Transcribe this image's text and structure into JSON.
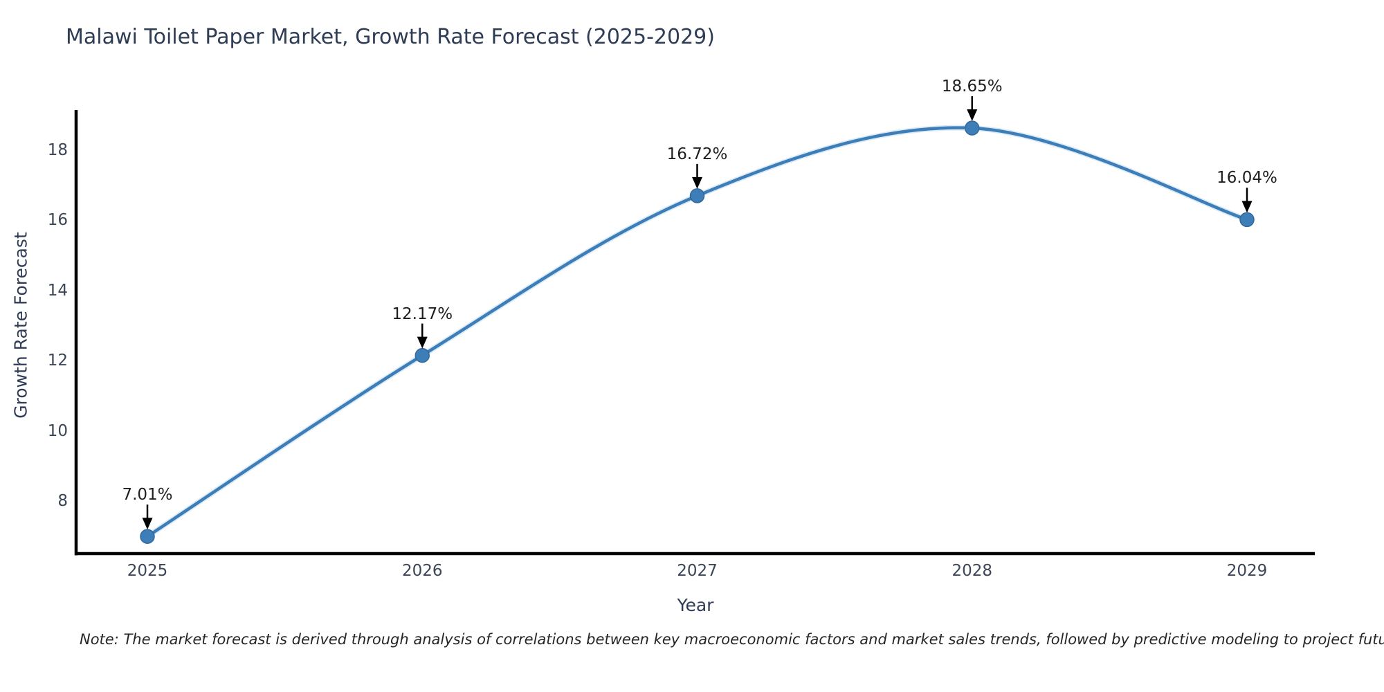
{
  "title": "Malawi Toilet Paper Market, Growth Rate Forecast (2025-2029)",
  "note": "Note: The market forecast is derived through analysis of correlations between key macroeconomic factors and market sales trends, followed by predictive modeling to project future sales.",
  "chart_data": {
    "type": "line",
    "title": "Malawi Toilet Paper Market, Growth Rate Forecast (2025-2029)",
    "xlabel": "Year",
    "ylabel": "Growth Rate Forecast",
    "categories": [
      2025,
      2026,
      2027,
      2028,
      2029
    ],
    "values": [
      7.01,
      12.17,
      16.72,
      18.65,
      16.04
    ],
    "point_labels": [
      "7.01%",
      "12.17%",
      "16.72%",
      "18.65%",
      "16.04%"
    ],
    "yticks": [
      8,
      10,
      12,
      14,
      16,
      18
    ],
    "ylim": [
      6.5,
      19.3
    ],
    "grid": false,
    "legend_position": "none",
    "smooth_curve": true,
    "line_color": "#3d7eb8",
    "line_glow_color": "#bcd8ee",
    "marker_color": "#3d7eb8",
    "marker_edge_color": "#35689a",
    "arrow_color": "#000000",
    "axis_color": "#000000",
    "title_color": "#2e3c55",
    "tick_color": "#3c4657",
    "annotation_text_color": "#1e1e1e"
  }
}
